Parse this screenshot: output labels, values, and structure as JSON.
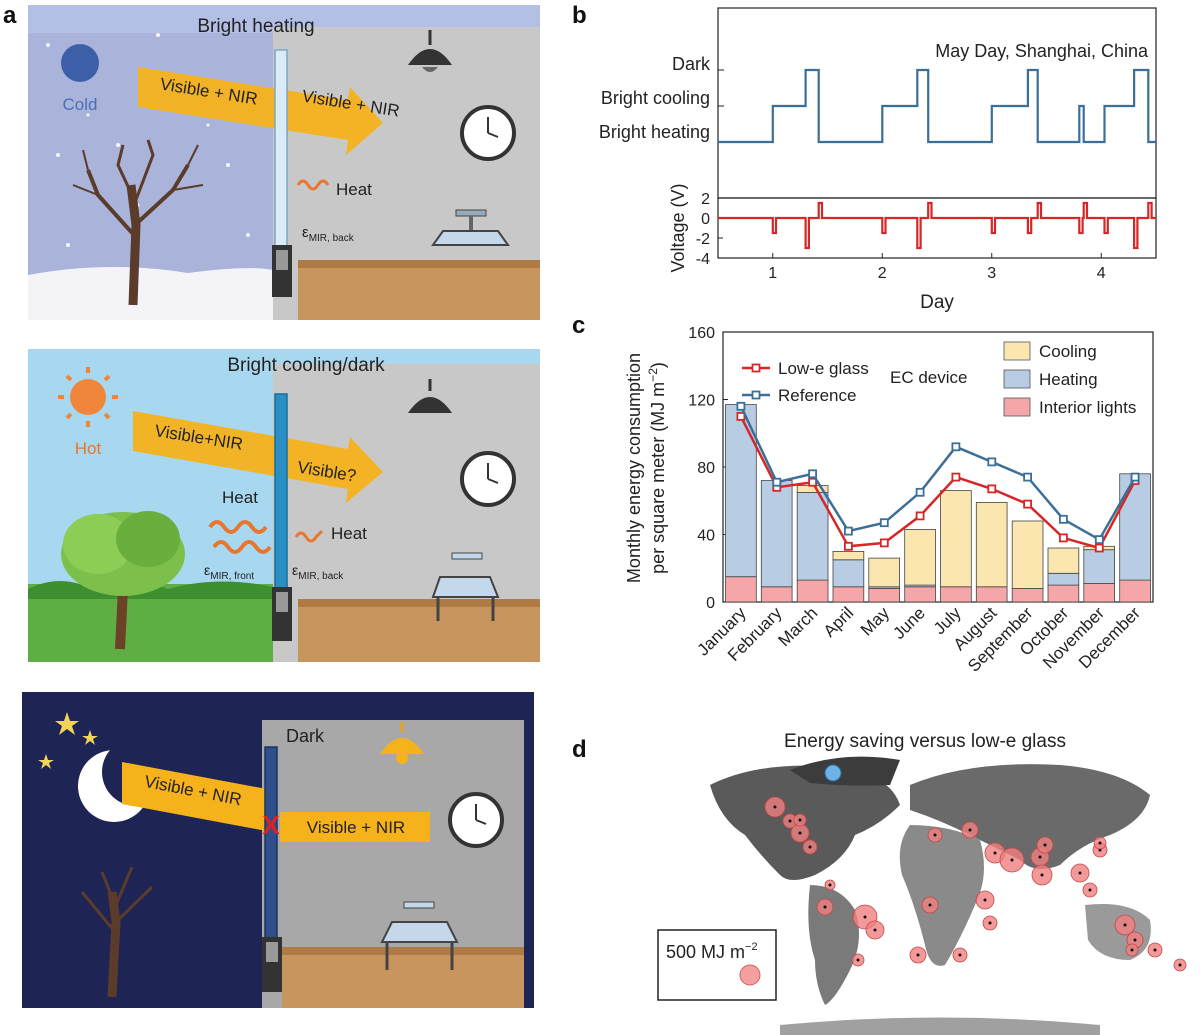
{
  "panel_labels": {
    "a": "a",
    "b": "b",
    "c": "c",
    "d": "d"
  },
  "scene_winter": {
    "title": "Bright heating",
    "cold_label": "Cold",
    "beam_outside": "Visible + NIR",
    "beam_inside": "Visible + NIR",
    "heat_label": "Heat",
    "emissivity_main": "ε",
    "emissivity_sub": "MIR, back"
  },
  "scene_summer": {
    "title": "Bright cooling/dark",
    "hot_label": "Hot",
    "beam_outside": "Visible+NIR",
    "beam_inside": "Visible?",
    "heat_left_label": "Heat",
    "heat_right_label": "Heat",
    "emissivity_front_main": "ε",
    "emissivity_front_sub": "MIR, front",
    "emissivity_back_main": "ε",
    "emissivity_back_sub": "MIR, back"
  },
  "scene_night": {
    "title": "Dark",
    "beam_outside": "Visible + NIR",
    "beam_inside": "Visible + NIR",
    "block_mark": "X"
  },
  "chart_data": [
    {
      "type": "line",
      "panel": "b",
      "annotation": "May Day, Shanghai, China",
      "xlabel": "Day",
      "xlim": [
        0.5,
        4.5
      ],
      "xticks": [
        1,
        2,
        3,
        4
      ],
      "state_labels": [
        "Bright heating",
        "Bright cooling",
        "Dark"
      ],
      "state_series": {
        "x": [
          0.5,
          1.0,
          1.0,
          1.3,
          1.3,
          1.42,
          1.42,
          2.0,
          2.0,
          2.32,
          2.32,
          2.42,
          2.42,
          3.0,
          3.0,
          3.33,
          3.33,
          3.42,
          3.42,
          3.8,
          3.8,
          3.84,
          3.84,
          4.03,
          4.03,
          4.3,
          4.3,
          4.43,
          4.43,
          4.5
        ],
        "y": [
          0,
          0,
          1,
          1,
          2,
          2,
          0,
          0,
          1,
          1,
          2,
          2,
          0,
          0,
          1,
          1,
          2,
          2,
          0,
          0,
          1,
          1,
          0,
          0,
          1,
          1,
          2,
          2,
          0,
          0
        ]
      },
      "voltage": {
        "ylabel": "Voltage (V)",
        "ylim": [
          -4,
          2
        ],
        "yticks": [
          2,
          0,
          -2,
          -4
        ],
        "x": [
          0.5,
          1.0,
          1.0,
          1.03,
          1.03,
          1.3,
          1.3,
          1.33,
          1.33,
          1.42,
          1.42,
          1.45,
          1.45,
          2.0,
          2.0,
          2.03,
          2.03,
          2.32,
          2.32,
          2.35,
          2.35,
          2.42,
          2.42,
          2.45,
          2.45,
          3.0,
          3.0,
          3.03,
          3.03,
          3.33,
          3.33,
          3.36,
          3.36,
          3.42,
          3.42,
          3.45,
          3.45,
          3.8,
          3.8,
          3.83,
          3.83,
          3.84,
          3.84,
          3.87,
          3.87,
          4.03,
          4.03,
          4.06,
          4.06,
          4.3,
          4.3,
          4.33,
          4.33,
          4.43,
          4.43,
          4.46,
          4.46,
          4.5
        ],
        "y": [
          0,
          0,
          -1.5,
          -1.5,
          0,
          0,
          -3,
          -3,
          0,
          0,
          1.5,
          1.5,
          0,
          0,
          -1.5,
          -1.5,
          0,
          0,
          -3,
          -3,
          0,
          0,
          1.5,
          1.5,
          0,
          0,
          -1.5,
          -1.5,
          0,
          0,
          -1.5,
          -1.5,
          0,
          0,
          1.5,
          1.5,
          0,
          0,
          -1.5,
          -1.5,
          0,
          0,
          1.5,
          1.5,
          0,
          0,
          -1.5,
          -1.5,
          0,
          0,
          -3,
          -3,
          0,
          0,
          1.5,
          1.5,
          0,
          0
        ]
      },
      "colors": {
        "state": "#3b6f98",
        "voltage": "#d62728"
      }
    },
    {
      "type": "bar",
      "panel": "c",
      "ylabel_line1": "Monthly energy consumption",
      "ylabel_line2": "per square meter (MJ m",
      "ylabel_sup": "−2",
      "ylabel_close": ")",
      "ylim": [
        0,
        160
      ],
      "yticks": [
        0,
        40,
        80,
        120,
        160
      ],
      "categories": [
        "January",
        "February",
        "March",
        "April",
        "May",
        "June",
        "July",
        "August",
        "September",
        "October",
        "November",
        "December"
      ],
      "stack_title": "EC device",
      "stacked_series": [
        {
          "name": "Interior lights",
          "color": "#f4a6a8",
          "values": [
            15,
            9,
            13,
            9,
            8,
            9,
            9,
            9,
            8,
            10,
            11,
            13
          ]
        },
        {
          "name": "Heating",
          "color": "#b8cce4",
          "values": [
            102,
            63,
            52,
            16,
            1,
            1,
            0,
            0,
            0,
            7,
            20,
            63
          ]
        },
        {
          "name": "Cooling",
          "color": "#fbe6b0",
          "values": [
            0,
            0,
            4,
            5,
            17,
            33,
            57,
            50,
            40,
            15,
            2,
            0
          ]
        }
      ],
      "line_series": [
        {
          "name": "Low-e glass",
          "color": "#d62728",
          "values": [
            110,
            68,
            71,
            33,
            35,
            51,
            74,
            67,
            58,
            38,
            32,
            72
          ]
        },
        {
          "name": "Reference",
          "color": "#3b6f98",
          "values": [
            116,
            71,
            76,
            42,
            47,
            65,
            92,
            83,
            74,
            49,
            37,
            74
          ]
        }
      ]
    }
  ],
  "map": {
    "title": "Energy saving versus low-e glass",
    "legend_label": "500 MJ m",
    "legend_sup": "−2",
    "bubble_color": "#f08080"
  }
}
